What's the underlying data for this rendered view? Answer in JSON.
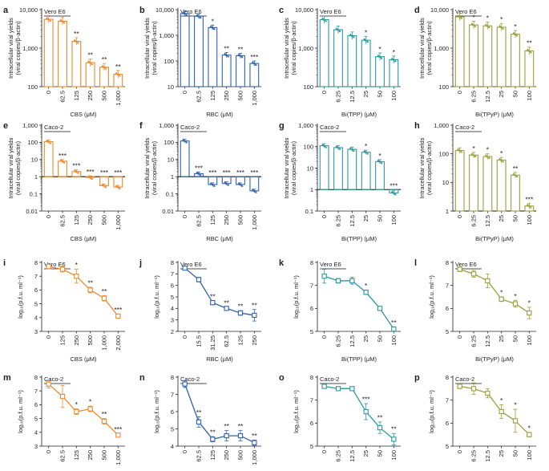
{
  "colors": {
    "orange": "#EE8A2E",
    "blue": "#2E62B0",
    "teal": "#2A9A9C",
    "olive": "#99A03A",
    "axis": "#222222"
  },
  "chart_data": [
    {
      "panel": "a",
      "type": "bar",
      "scale": "log",
      "color": "orange",
      "cell_label": "Vero E6",
      "ylabel": [
        "Intracellular viral yields",
        "(viral copies/β-actin)"
      ],
      "xlabel": "CBS (μM)",
      "categories": [
        "0",
        "62.5",
        "125",
        "250",
        "500",
        "1,000"
      ],
      "values": [
        5600,
        5000,
        1500,
        420,
        320,
        210
      ],
      "yticks": [
        {
          "v": 100,
          "t": "100"
        },
        {
          "v": 1000,
          "t": "1,000"
        },
        {
          "v": 10000,
          "t": "10,000"
        }
      ],
      "ylim": [
        100,
        10000
      ],
      "sig": [
        "",
        "",
        "**",
        "**",
        "**",
        "**"
      ],
      "baseline": null
    },
    {
      "panel": "b",
      "type": "bar",
      "scale": "log",
      "color": "blue",
      "cell_label": "Vero E6",
      "ylabel": [
        "Intracellular viral yields",
        "(viral copies/β-actin)"
      ],
      "xlabel": "RBC (μM)",
      "categories": [
        "0",
        "62.5",
        "125",
        "250",
        "500",
        "1,000"
      ],
      "values": [
        7000,
        5500,
        2000,
        170,
        160,
        80
      ],
      "yticks": [
        {
          "v": 10,
          "t": "10"
        },
        {
          "v": 100,
          "t": "100"
        },
        {
          "v": 1000,
          "t": "1,000"
        },
        {
          "v": 10000,
          "t": "10,000"
        }
      ],
      "ylim": [
        10,
        10000
      ],
      "sig": [
        "",
        "",
        "*",
        "**",
        "**",
        "***"
      ],
      "baseline": null
    },
    {
      "panel": "c",
      "type": "bar",
      "scale": "log",
      "color": "teal",
      "cell_label": "Vero E6",
      "ylabel": [
        "Intracellular viral yields",
        "(viral copies/β-actin)"
      ],
      "xlabel": "Bi(TPP) (μM)",
      "categories": [
        "0",
        "6.25",
        "12.5",
        "25",
        "50",
        "100"
      ],
      "values": [
        5500,
        3000,
        2100,
        1600,
        600,
        500
      ],
      "yticks": [
        {
          "v": 100,
          "t": "100"
        },
        {
          "v": 1000,
          "t": "1,000"
        },
        {
          "v": 10000,
          "t": "10,000"
        }
      ],
      "ylim": [
        100,
        10000
      ],
      "sig": [
        "",
        "",
        "",
        "*",
        "*",
        "*"
      ],
      "baseline": null
    },
    {
      "panel": "d",
      "type": "bar",
      "scale": "log",
      "color": "olive",
      "cell_label": "Vero E6",
      "ylabel": [
        "Intracellular viral yields",
        "(viral copies/β-actin)"
      ],
      "xlabel": "Bi(TPyP) (μM)",
      "categories": [
        "0",
        "6.25",
        "12.5",
        "25",
        "50",
        "100"
      ],
      "values": [
        6500,
        4000,
        3800,
        3500,
        2300,
        850
      ],
      "yticks": [
        {
          "v": 100,
          "t": "100"
        },
        {
          "v": 1000,
          "t": "1,000"
        },
        {
          "v": 10000,
          "t": "10,000"
        }
      ],
      "ylim": [
        100,
        10000
      ],
      "sig": [
        "",
        "*",
        "*",
        "*",
        "*",
        "**"
      ],
      "baseline": null
    },
    {
      "panel": "e",
      "type": "bar",
      "scale": "log",
      "color": "orange",
      "cell_label": "Caco-2",
      "ylabel": [
        "Intracellular viral yields",
        "(viral copies/β-actin)"
      ],
      "xlabel": "CBS (μM)",
      "categories": [
        "0",
        "62.5",
        "125",
        "250",
        "500",
        "1,000"
      ],
      "values": [
        110,
        8,
        2,
        0.9,
        0.3,
        0.25
      ],
      "yticks": [
        {
          "v": 0.01,
          "t": "0.01"
        },
        {
          "v": 0.1,
          "t": "0.1"
        },
        {
          "v": 1,
          "t": "1"
        },
        {
          "v": 10,
          "t": "10"
        },
        {
          "v": 100,
          "t": "100"
        },
        {
          "v": 1000,
          "t": "1,000"
        }
      ],
      "ylim": [
        0.01,
        1000
      ],
      "sig": [
        "",
        "***",
        "***",
        "***",
        "***",
        "***"
      ],
      "baseline": 1
    },
    {
      "panel": "f",
      "type": "bar",
      "scale": "log",
      "color": "blue",
      "cell_label": "Caco-2",
      "ylabel": [
        "Intracellular viral yields",
        "(viral copies/β-actin)"
      ],
      "xlabel": "RBC (μM)",
      "categories": [
        "0",
        "62.5",
        "125",
        "250",
        "500",
        "1,000"
      ],
      "values": [
        120,
        1.5,
        0.35,
        0.4,
        0.35,
        0.15
      ],
      "yticks": [
        {
          "v": 0.01,
          "t": "0.01"
        },
        {
          "v": 0.1,
          "t": "0.1"
        },
        {
          "v": 1,
          "t": "1"
        },
        {
          "v": 10,
          "t": "10"
        },
        {
          "v": 100,
          "t": "100"
        },
        {
          "v": 1000,
          "t": "1,000"
        }
      ],
      "ylim": [
        0.01,
        1000
      ],
      "sig": [
        "",
        "***",
        "***",
        "***",
        "***",
        "***"
      ],
      "baseline": 1
    },
    {
      "panel": "g",
      "type": "bar",
      "scale": "log",
      "color": "teal",
      "cell_label": "Caco-2",
      "ylabel": [
        "Intracellular viral yields",
        "(viral copies/β-actin)"
      ],
      "xlabel": "Bi(TPP) (μM)",
      "categories": [
        "0",
        "6.25",
        "12.5",
        "25",
        "50",
        "100"
      ],
      "values": [
        110,
        90,
        75,
        55,
        20,
        0.7
      ],
      "yticks": [
        {
          "v": 0.1,
          "t": "0.1"
        },
        {
          "v": 1,
          "t": "1"
        },
        {
          "v": 10,
          "t": "10"
        },
        {
          "v": 100,
          "t": "100"
        },
        {
          "v": 1000,
          "t": "1,000"
        }
      ],
      "ylim": [
        0.1,
        1000
      ],
      "sig": [
        "",
        "",
        "",
        "*",
        "*",
        "***"
      ],
      "baseline": 1
    },
    {
      "panel": "h",
      "type": "bar",
      "scale": "log",
      "color": "olive",
      "cell_label": "Caco-2",
      "ylabel": [
        "Intracellular viral yields",
        "(viral copies/β-actin)"
      ],
      "xlabel": "Bi(TPyP) (μM)",
      "categories": [
        "0",
        "6.25",
        "12.5",
        "25",
        "50",
        "100"
      ],
      "values": [
        130,
        90,
        80,
        60,
        18,
        1.5
      ],
      "yticks": [
        {
          "v": 1,
          "t": "1"
        },
        {
          "v": 10,
          "t": "10"
        },
        {
          "v": 100,
          "t": "100"
        },
        {
          "v": 1000,
          "t": "1,000"
        }
      ],
      "ylim": [
        1,
        1000
      ],
      "sig": [
        "",
        "*",
        "*",
        "*",
        "**",
        "***"
      ],
      "baseline": 1
    },
    {
      "panel": "i",
      "type": "line",
      "scale": "linear",
      "color": "orange",
      "cell_label": "Vero E6",
      "ylabel": "log₁₀(p.f.u. ml⁻¹)",
      "xlabel": "CBS (μM)",
      "categories": [
        "0",
        "125",
        "250",
        "500",
        "1,000",
        "2,000"
      ],
      "values": [
        7.7,
        7.5,
        7.0,
        6.0,
        5.4,
        4.1
      ],
      "errors": [
        0.15,
        0.2,
        0.5,
        0.2,
        0.2,
        0.15
      ],
      "yticks": [
        {
          "v": 3,
          "t": "3"
        },
        {
          "v": 4,
          "t": "4"
        },
        {
          "v": 5,
          "t": "5"
        },
        {
          "v": 6,
          "t": "6"
        },
        {
          "v": 7,
          "t": "7"
        },
        {
          "v": 8,
          "t": "8"
        }
      ],
      "ylim": [
        3,
        8
      ],
      "sig": [
        "",
        "",
        "*",
        "**",
        "**",
        "***"
      ]
    },
    {
      "panel": "j",
      "type": "line",
      "scale": "linear",
      "color": "blue",
      "cell_label": "Vero E6",
      "ylabel": "log₁₀(p.f.u. ml⁻¹)",
      "xlabel": "RBC (μM)",
      "categories": [
        "0",
        "15.5",
        "31.25",
        "62.5",
        "125",
        "250"
      ],
      "values": [
        7.5,
        6.5,
        4.5,
        4.0,
        3.6,
        3.4
      ],
      "errors": [
        0.15,
        0.2,
        0.15,
        0.1,
        0.2,
        0.5
      ],
      "yticks": [
        {
          "v": 2,
          "t": "2"
        },
        {
          "v": 3,
          "t": "3"
        },
        {
          "v": 4,
          "t": "4"
        },
        {
          "v": 5,
          "t": "5"
        },
        {
          "v": 6,
          "t": "6"
        },
        {
          "v": 7,
          "t": "7"
        },
        {
          "v": 8,
          "t": "8"
        }
      ],
      "ylim": [
        2,
        8
      ],
      "sig": [
        "",
        "",
        "**",
        "**",
        "**",
        "**"
      ]
    },
    {
      "panel": "k",
      "type": "line",
      "scale": "linear",
      "color": "teal",
      "cell_label": "Vero E6",
      "ylabel": "log₁₀(p.f.u. ml⁻¹)",
      "xlabel": "Bi(TPP) (μM)",
      "categories": [
        "0",
        "6.25",
        "12.5",
        "25",
        "50",
        "100"
      ],
      "values": [
        7.4,
        7.2,
        7.2,
        6.7,
        6.0,
        5.1
      ],
      "errors": [
        0.3,
        0.1,
        0.15,
        0.1,
        0.05,
        0.1
      ],
      "yticks": [
        {
          "v": 5,
          "t": "5"
        },
        {
          "v": 6,
          "t": "6"
        },
        {
          "v": 7,
          "t": "7"
        },
        {
          "v": 8,
          "t": "8"
        }
      ],
      "ylim": [
        5,
        8
      ],
      "sig": [
        "",
        "",
        "",
        "*",
        "",
        "**"
      ]
    },
    {
      "panel": "l",
      "type": "line",
      "scale": "linear",
      "color": "olive",
      "cell_label": "Vero E6",
      "ylabel": "log₁₀(p.f.u. ml⁻¹)",
      "xlabel": "Bi(TPyP) (μM)",
      "categories": [
        "0",
        "6.25",
        "12.5",
        "25",
        "50",
        "100"
      ],
      "values": [
        7.7,
        7.5,
        7.2,
        6.4,
        6.2,
        5.8
      ],
      "errors": [
        0.1,
        0.15,
        0.3,
        0.1,
        0.15,
        0.25
      ],
      "yticks": [
        {
          "v": 5,
          "t": "5"
        },
        {
          "v": 6,
          "t": "6"
        },
        {
          "v": 7,
          "t": "7"
        },
        {
          "v": 8,
          "t": "8"
        }
      ],
      "ylim": [
        5,
        8
      ],
      "sig": [
        "",
        "",
        "",
        "*",
        "*",
        "*"
      ]
    },
    {
      "panel": "m",
      "type": "line",
      "scale": "linear",
      "color": "orange",
      "cell_label": "Caco-2",
      "ylabel": "log₁₀(p.f.u. ml⁻¹)",
      "xlabel": "CBS (μM)",
      "categories": [
        "0",
        "62.5",
        "125",
        "250",
        "500",
        "1,000"
      ],
      "values": [
        7.5,
        6.6,
        5.5,
        5.7,
        4.8,
        3.8
      ],
      "errors": [
        0.3,
        0.8,
        0.2,
        0.2,
        0.2,
        0.1
      ],
      "yticks": [
        {
          "v": 3,
          "t": "3"
        },
        {
          "v": 4,
          "t": "4"
        },
        {
          "v": 5,
          "t": "5"
        },
        {
          "v": 6,
          "t": "6"
        },
        {
          "v": 7,
          "t": "7"
        },
        {
          "v": 8,
          "t": "8"
        }
      ],
      "ylim": [
        3,
        8
      ],
      "sig": [
        "",
        "",
        "*",
        "*",
        "**",
        "***"
      ]
    },
    {
      "panel": "n",
      "type": "line",
      "scale": "linear",
      "color": "blue",
      "cell_label": "Caco-2",
      "ylabel": "log₁₀(p.f.u. ml⁻¹)",
      "xlabel": "RBC (μM)",
      "categories": [
        "0",
        "62.5",
        "125",
        "250",
        "500",
        "1,000"
      ],
      "values": [
        7.6,
        5.4,
        4.4,
        4.6,
        4.6,
        4.2
      ],
      "errors": [
        0.2,
        0.3,
        0.15,
        0.3,
        0.3,
        0.15
      ],
      "yticks": [
        {
          "v": 4,
          "t": "4"
        },
        {
          "v": 5,
          "t": "5"
        },
        {
          "v": 6,
          "t": "6"
        },
        {
          "v": 7,
          "t": "7"
        },
        {
          "v": 8,
          "t": "8"
        }
      ],
      "ylim": [
        4,
        8
      ],
      "sig": [
        "",
        "**",
        "**",
        "**",
        "**",
        "**"
      ]
    },
    {
      "panel": "o",
      "type": "line",
      "scale": "linear",
      "color": "teal",
      "cell_label": "Caco-2",
      "ylabel": "log₁₀(p.f.u. ml⁻¹)",
      "xlabel": "Bi(TPP) (μM)",
      "categories": [
        "0",
        "6.25",
        "12.5",
        "25",
        "50",
        "100"
      ],
      "values": [
        7.6,
        7.5,
        7.5,
        6.5,
        5.8,
        5.3
      ],
      "errors": [
        0.05,
        0.05,
        0.05,
        0.35,
        0.25,
        0.25
      ],
      "yticks": [
        {
          "v": 5,
          "t": "5"
        },
        {
          "v": 6,
          "t": "6"
        },
        {
          "v": 7,
          "t": "7"
        },
        {
          "v": 8,
          "t": "8"
        }
      ],
      "ylim": [
        5,
        8
      ],
      "sig": [
        "",
        "",
        "",
        "***",
        "**",
        "**"
      ]
    },
    {
      "panel": "p",
      "type": "line",
      "scale": "linear",
      "color": "olive",
      "cell_label": "Caco-2",
      "ylabel": "log₁₀(p.f.u. ml⁻¹)",
      "xlabel": "Bi(TPyP) (μM)",
      "categories": [
        "0",
        "6.25",
        "12.5",
        "25",
        "50",
        "100"
      ],
      "values": [
        7.6,
        7.5,
        7.3,
        6.5,
        6.1,
        5.5
      ],
      "errors": [
        0.1,
        0.25,
        0.2,
        0.3,
        0.5,
        0.1
      ],
      "yticks": [
        {
          "v": 5,
          "t": "5"
        },
        {
          "v": 6,
          "t": "6"
        },
        {
          "v": 7,
          "t": "7"
        },
        {
          "v": 8,
          "t": "8"
        }
      ],
      "ylim": [
        5,
        8
      ],
      "sig": [
        "",
        "",
        "",
        "*",
        "*",
        "*"
      ]
    }
  ]
}
